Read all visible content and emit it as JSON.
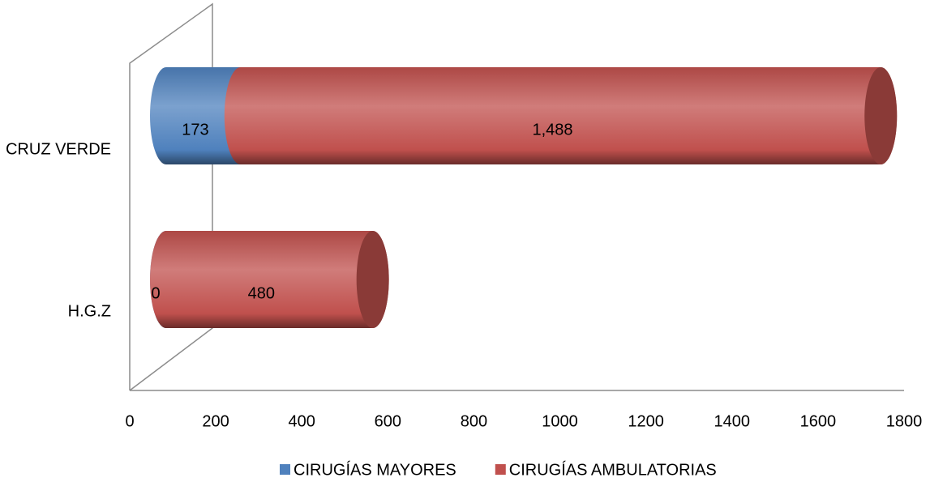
{
  "chart_data": {
    "type": "bar",
    "orientation": "horizontal",
    "stacked": true,
    "categories": [
      "CRUZ VERDE",
      "H.G.Z"
    ],
    "series": [
      {
        "name": "CIRUGÍAS MAYORES",
        "color": "#4f81bd",
        "values": [
          173,
          0
        ]
      },
      {
        "name": "CIRUGÍAS AMBULATORIAS",
        "color": "#c0504d",
        "values": [
          1488,
          480
        ],
        "value_labels": [
          "1,488",
          "480"
        ]
      }
    ],
    "xlim": [
      0,
      1800
    ],
    "xticks": [
      0,
      200,
      400,
      600,
      800,
      1000,
      1200,
      1400,
      1600,
      1800
    ],
    "legend": "bottom"
  }
}
